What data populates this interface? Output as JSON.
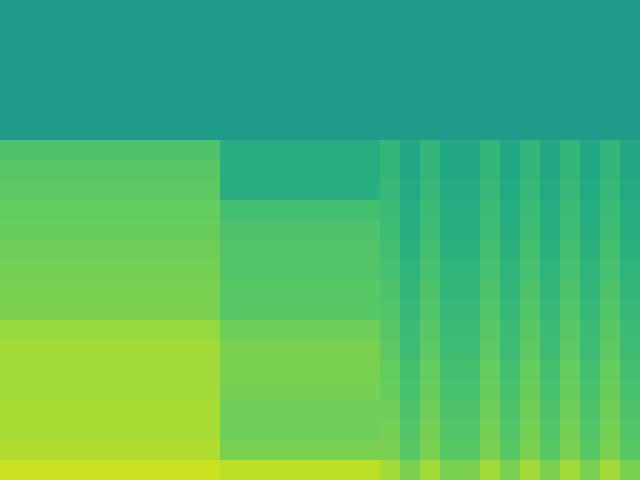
{
  "chart_data": {
    "type": "heatmap",
    "color": "viridis",
    "zlim": [
      0,
      1
    ],
    "tick_labels": false,
    "cells": [
      [
        0.55,
        0.55,
        0.55,
        0.55,
        0.55,
        0.55,
        0.55,
        0.55,
        0.55,
        0.55,
        0.55,
        0.55,
        0.55,
        0.55,
        0.55,
        0.55,
        0.55,
        0.55,
        0.55,
        0.55,
        0.55,
        0.55,
        0.55,
        0.55,
        0.55,
        0.55,
        0.55,
        0.55,
        0.55,
        0.55,
        0.55,
        0.55
      ],
      [
        0.55,
        0.55,
        0.55,
        0.55,
        0.55,
        0.55,
        0.55,
        0.55,
        0.55,
        0.55,
        0.55,
        0.55,
        0.55,
        0.55,
        0.55,
        0.55,
        0.55,
        0.55,
        0.55,
        0.55,
        0.55,
        0.55,
        0.55,
        0.55,
        0.55,
        0.55,
        0.55,
        0.55,
        0.55,
        0.55,
        0.55,
        0.55
      ],
      [
        0.55,
        0.55,
        0.55,
        0.55,
        0.55,
        0.55,
        0.55,
        0.55,
        0.55,
        0.55,
        0.55,
        0.55,
        0.55,
        0.55,
        0.55,
        0.55,
        0.55,
        0.55,
        0.55,
        0.55,
        0.55,
        0.55,
        0.55,
        0.55,
        0.55,
        0.55,
        0.55,
        0.55,
        0.55,
        0.55,
        0.55,
        0.55
      ],
      [
        0.55,
        0.55,
        0.55,
        0.55,
        0.55,
        0.55,
        0.55,
        0.55,
        0.55,
        0.55,
        0.55,
        0.55,
        0.55,
        0.55,
        0.55,
        0.55,
        0.55,
        0.55,
        0.55,
        0.55,
        0.55,
        0.55,
        0.55,
        0.55,
        0.55,
        0.55,
        0.55,
        0.55,
        0.55,
        0.55,
        0.55,
        0.55
      ],
      [
        0.55,
        0.55,
        0.55,
        0.55,
        0.55,
        0.55,
        0.55,
        0.55,
        0.55,
        0.55,
        0.55,
        0.55,
        0.55,
        0.55,
        0.55,
        0.55,
        0.55,
        0.55,
        0.55,
        0.55,
        0.55,
        0.55,
        0.55,
        0.55,
        0.55,
        0.55,
        0.55,
        0.55,
        0.55,
        0.55,
        0.55,
        0.55
      ],
      [
        0.55,
        0.55,
        0.55,
        0.55,
        0.55,
        0.55,
        0.55,
        0.55,
        0.55,
        0.55,
        0.55,
        0.55,
        0.55,
        0.55,
        0.55,
        0.55,
        0.55,
        0.55,
        0.55,
        0.55,
        0.55,
        0.55,
        0.55,
        0.55,
        0.55,
        0.55,
        0.55,
        0.55,
        0.55,
        0.55,
        0.55,
        0.55
      ],
      [
        0.55,
        0.55,
        0.55,
        0.55,
        0.55,
        0.55,
        0.55,
        0.55,
        0.55,
        0.55,
        0.55,
        0.55,
        0.55,
        0.55,
        0.55,
        0.55,
        0.55,
        0.55,
        0.55,
        0.55,
        0.55,
        0.55,
        0.55,
        0.55,
        0.55,
        0.55,
        0.55,
        0.55,
        0.55,
        0.55,
        0.55,
        0.55
      ],
      [
        0.72,
        0.72,
        0.72,
        0.72,
        0.72,
        0.72,
        0.72,
        0.72,
        0.72,
        0.72,
        0.72,
        0.62,
        0.62,
        0.62,
        0.62,
        0.62,
        0.62,
        0.62,
        0.62,
        0.66,
        0.6,
        0.66,
        0.6,
        0.6,
        0.66,
        0.6,
        0.66,
        0.6,
        0.66,
        0.6,
        0.66,
        0.6
      ],
      [
        0.74,
        0.74,
        0.74,
        0.74,
        0.74,
        0.74,
        0.74,
        0.74,
        0.74,
        0.74,
        0.74,
        0.62,
        0.62,
        0.62,
        0.62,
        0.62,
        0.62,
        0.62,
        0.62,
        0.66,
        0.6,
        0.66,
        0.6,
        0.6,
        0.66,
        0.6,
        0.66,
        0.6,
        0.66,
        0.6,
        0.66,
        0.6
      ],
      [
        0.75,
        0.75,
        0.75,
        0.75,
        0.75,
        0.75,
        0.75,
        0.75,
        0.75,
        0.75,
        0.75,
        0.63,
        0.63,
        0.63,
        0.63,
        0.63,
        0.63,
        0.63,
        0.63,
        0.67,
        0.61,
        0.67,
        0.61,
        0.61,
        0.67,
        0.61,
        0.67,
        0.61,
        0.67,
        0.61,
        0.67,
        0.61
      ],
      [
        0.76,
        0.76,
        0.76,
        0.76,
        0.76,
        0.76,
        0.76,
        0.76,
        0.76,
        0.76,
        0.76,
        0.7,
        0.7,
        0.7,
        0.7,
        0.7,
        0.7,
        0.7,
        0.7,
        0.68,
        0.62,
        0.68,
        0.62,
        0.62,
        0.68,
        0.62,
        0.68,
        0.62,
        0.68,
        0.62,
        0.68,
        0.62
      ],
      [
        0.77,
        0.77,
        0.77,
        0.77,
        0.77,
        0.77,
        0.77,
        0.77,
        0.77,
        0.77,
        0.77,
        0.72,
        0.72,
        0.72,
        0.72,
        0.72,
        0.72,
        0.72,
        0.72,
        0.69,
        0.63,
        0.69,
        0.63,
        0.63,
        0.69,
        0.63,
        0.69,
        0.63,
        0.69,
        0.63,
        0.69,
        0.63
      ],
      [
        0.78,
        0.78,
        0.78,
        0.78,
        0.78,
        0.78,
        0.78,
        0.78,
        0.78,
        0.78,
        0.78,
        0.73,
        0.73,
        0.73,
        0.73,
        0.73,
        0.73,
        0.73,
        0.73,
        0.7,
        0.64,
        0.7,
        0.64,
        0.64,
        0.7,
        0.64,
        0.7,
        0.64,
        0.7,
        0.64,
        0.7,
        0.64
      ],
      [
        0.79,
        0.79,
        0.79,
        0.79,
        0.79,
        0.79,
        0.79,
        0.79,
        0.79,
        0.79,
        0.79,
        0.73,
        0.73,
        0.73,
        0.73,
        0.73,
        0.73,
        0.73,
        0.73,
        0.71,
        0.65,
        0.71,
        0.65,
        0.65,
        0.71,
        0.65,
        0.71,
        0.65,
        0.71,
        0.65,
        0.71,
        0.65
      ],
      [
        0.8,
        0.8,
        0.8,
        0.8,
        0.8,
        0.8,
        0.8,
        0.8,
        0.8,
        0.8,
        0.8,
        0.74,
        0.74,
        0.74,
        0.74,
        0.74,
        0.74,
        0.74,
        0.74,
        0.72,
        0.66,
        0.72,
        0.66,
        0.66,
        0.72,
        0.66,
        0.72,
        0.66,
        0.72,
        0.66,
        0.72,
        0.66
      ],
      [
        0.8,
        0.8,
        0.8,
        0.8,
        0.8,
        0.8,
        0.8,
        0.8,
        0.8,
        0.8,
        0.8,
        0.74,
        0.74,
        0.74,
        0.74,
        0.74,
        0.74,
        0.74,
        0.74,
        0.73,
        0.67,
        0.73,
        0.67,
        0.67,
        0.73,
        0.67,
        0.73,
        0.67,
        0.73,
        0.67,
        0.73,
        0.67
      ],
      [
        0.84,
        0.84,
        0.84,
        0.84,
        0.84,
        0.84,
        0.84,
        0.84,
        0.84,
        0.84,
        0.84,
        0.78,
        0.78,
        0.78,
        0.78,
        0.78,
        0.78,
        0.78,
        0.78,
        0.74,
        0.68,
        0.74,
        0.68,
        0.68,
        0.74,
        0.68,
        0.74,
        0.68,
        0.74,
        0.68,
        0.74,
        0.68
      ],
      [
        0.86,
        0.86,
        0.86,
        0.86,
        0.86,
        0.86,
        0.86,
        0.86,
        0.86,
        0.86,
        0.86,
        0.8,
        0.8,
        0.8,
        0.8,
        0.8,
        0.8,
        0.8,
        0.8,
        0.75,
        0.69,
        0.75,
        0.69,
        0.69,
        0.75,
        0.69,
        0.75,
        0.69,
        0.75,
        0.69,
        0.75,
        0.69
      ],
      [
        0.86,
        0.86,
        0.86,
        0.86,
        0.86,
        0.86,
        0.86,
        0.86,
        0.86,
        0.86,
        0.86,
        0.8,
        0.8,
        0.8,
        0.8,
        0.8,
        0.8,
        0.8,
        0.8,
        0.76,
        0.7,
        0.76,
        0.7,
        0.7,
        0.76,
        0.7,
        0.76,
        0.7,
        0.76,
        0.7,
        0.76,
        0.7
      ],
      [
        0.86,
        0.86,
        0.86,
        0.86,
        0.86,
        0.86,
        0.86,
        0.86,
        0.86,
        0.86,
        0.86,
        0.79,
        0.79,
        0.79,
        0.79,
        0.79,
        0.79,
        0.79,
        0.79,
        0.77,
        0.71,
        0.77,
        0.71,
        0.71,
        0.77,
        0.71,
        0.77,
        0.71,
        0.77,
        0.71,
        0.77,
        0.71
      ],
      [
        0.87,
        0.87,
        0.87,
        0.87,
        0.87,
        0.87,
        0.87,
        0.87,
        0.87,
        0.87,
        0.87,
        0.78,
        0.78,
        0.78,
        0.78,
        0.78,
        0.78,
        0.78,
        0.78,
        0.78,
        0.72,
        0.78,
        0.72,
        0.72,
        0.78,
        0.72,
        0.78,
        0.72,
        0.78,
        0.72,
        0.78,
        0.72
      ],
      [
        0.87,
        0.87,
        0.87,
        0.87,
        0.87,
        0.87,
        0.87,
        0.87,
        0.87,
        0.87,
        0.87,
        0.78,
        0.78,
        0.78,
        0.78,
        0.78,
        0.78,
        0.78,
        0.78,
        0.79,
        0.73,
        0.79,
        0.73,
        0.73,
        0.79,
        0.73,
        0.79,
        0.73,
        0.79,
        0.73,
        0.79,
        0.73
      ],
      [
        0.88,
        0.88,
        0.88,
        0.88,
        0.88,
        0.88,
        0.88,
        0.88,
        0.88,
        0.88,
        0.88,
        0.8,
        0.8,
        0.8,
        0.8,
        0.8,
        0.8,
        0.8,
        0.8,
        0.8,
        0.74,
        0.8,
        0.74,
        0.74,
        0.8,
        0.74,
        0.8,
        0.74,
        0.8,
        0.74,
        0.8,
        0.74
      ],
      [
        0.92,
        0.92,
        0.92,
        0.92,
        0.92,
        0.92,
        0.92,
        0.92,
        0.92,
        0.92,
        0.92,
        0.9,
        0.9,
        0.9,
        0.9,
        0.9,
        0.9,
        0.9,
        0.9,
        0.86,
        0.8,
        0.86,
        0.8,
        0.8,
        0.86,
        0.8,
        0.86,
        0.8,
        0.86,
        0.8,
        0.86,
        0.8
      ]
    ]
  }
}
